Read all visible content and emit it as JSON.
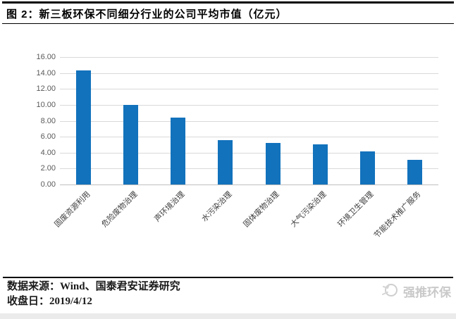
{
  "header": {
    "title": "图 2：新三板环保不同细分行业的公司平均市值（亿元）"
  },
  "chart_data": {
    "type": "bar",
    "title": "新三板环保不同细分行业的公司平均市值（亿元）",
    "categories": [
      "固废资源利用",
      "危险废物治理",
      "声环境治理",
      "水污染治理",
      "固体废物治理",
      "大气污染治理",
      "环境卫生管理",
      "节能技术推广服务"
    ],
    "values": [
      14.3,
      10.0,
      8.4,
      5.55,
      5.2,
      5.0,
      4.15,
      3.1
    ],
    "xlabel": "",
    "ylabel": "",
    "ylim": [
      0,
      16
    ],
    "ytick_step": 2,
    "ytick_labels": [
      "0.00",
      "2.00",
      "4.00",
      "6.00",
      "8.00",
      "10.00",
      "12.00",
      "14.00",
      "16.00"
    ],
    "grid": true,
    "legend": false,
    "bar_color": "#1272bc",
    "gridline_color": "#d9d9d9",
    "axis_line_color": "#bfbfbf",
    "tick_label_color": "#595959",
    "category_label_color": "#404040"
  },
  "footer": {
    "source_label": "数据来源：Wind、国泰君安证券研究",
    "close_date_label": "收盘日：2019/4/12"
  },
  "watermark": {
    "text": "强推环保"
  }
}
